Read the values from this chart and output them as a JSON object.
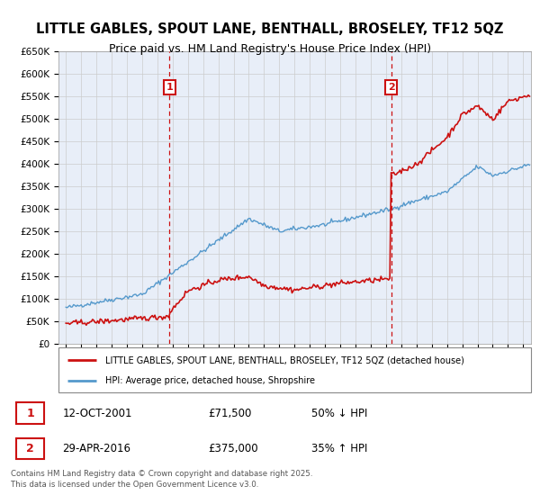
{
  "title": "LITTLE GABLES, SPOUT LANE, BENTHALL, BROSELEY, TF12 5QZ",
  "subtitle": "Price paid vs. HM Land Registry's House Price Index (HPI)",
  "title_fontsize": 10.5,
  "subtitle_fontsize": 9,
  "hpi_color": "#5599cc",
  "price_color": "#cc1111",
  "marker_line_color": "#cc1111",
  "ylim": [
    0,
    650000
  ],
  "yticks": [
    0,
    50000,
    100000,
    150000,
    200000,
    250000,
    300000,
    350000,
    400000,
    450000,
    500000,
    550000,
    600000,
    650000
  ],
  "ytick_labels": [
    "£0",
    "£50K",
    "£100K",
    "£150K",
    "£200K",
    "£250K",
    "£300K",
    "£350K",
    "£400K",
    "£450K",
    "£500K",
    "£550K",
    "£600K",
    "£650K"
  ],
  "xlim_start": 1994.5,
  "xlim_end": 2025.5,
  "sale1_year": 2001.79,
  "sale1_price": 71500,
  "sale1_label": "1",
  "sale2_year": 2016.33,
  "sale2_price": 375000,
  "sale2_label": "2",
  "legend_line1": "LITTLE GABLES, SPOUT LANE, BENTHALL, BROSELEY, TF12 5QZ (detached house)",
  "legend_line2": "HPI: Average price, detached house, Shropshire",
  "annotation1_date": "12-OCT-2001",
  "annotation1_price": "£71,500",
  "annotation1_pct": "50% ↓ HPI",
  "annotation2_date": "29-APR-2016",
  "annotation2_price": "£375,000",
  "annotation2_pct": "35% ↑ HPI",
  "footer": "Contains HM Land Registry data © Crown copyright and database right 2025.\nThis data is licensed under the Open Government Licence v3.0.",
  "background_color": "#e8eef8",
  "plot_bg_color": "#ffffff"
}
